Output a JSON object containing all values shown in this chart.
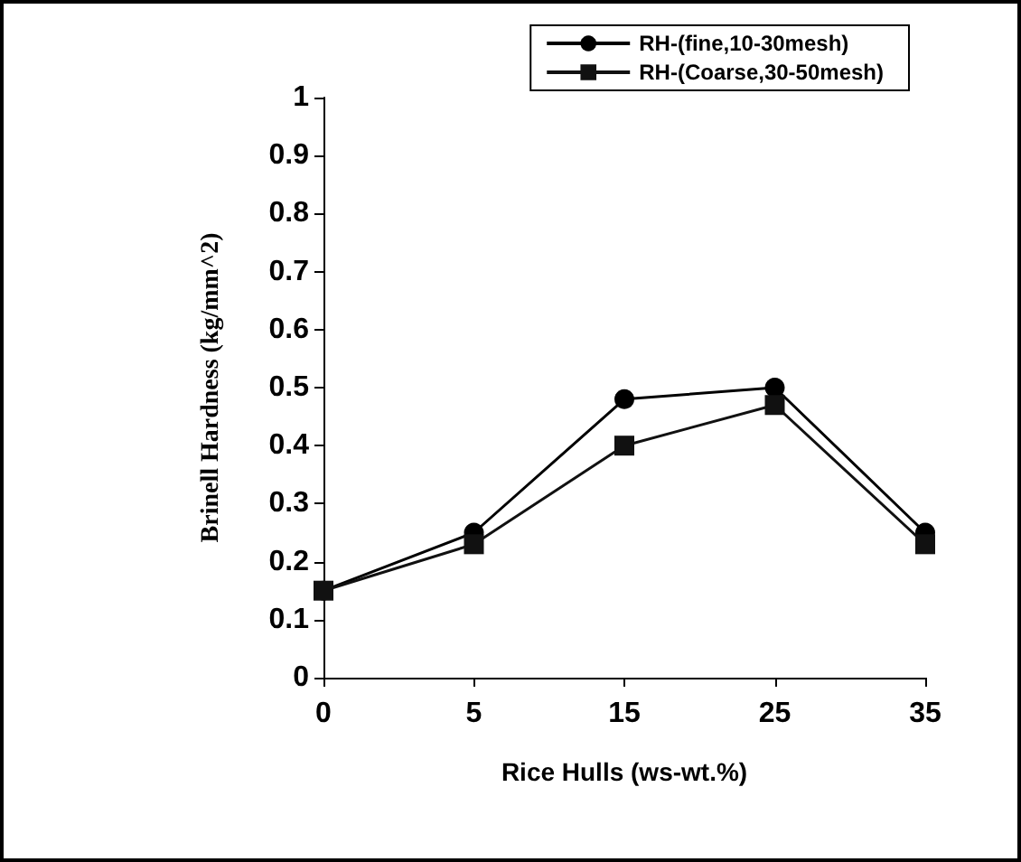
{
  "chart_data": {
    "type": "line",
    "xlabel": "Rice Hulls (ws-wt.%)",
    "ylabel": "Brinell Hardness (kg/mm^2)",
    "categories": [
      "0",
      "5",
      "15",
      "25",
      "35"
    ],
    "series": [
      {
        "name": "RH-(fine,10-30mesh)",
        "color": "#000000",
        "marker": "circle",
        "values": [
          0.15,
          0.25,
          0.48,
          0.5,
          0.25
        ]
      },
      {
        "name": "RH-(Coarse,30-50mesh)",
        "color": "#111111",
        "marker": "square",
        "values": [
          0.15,
          0.23,
          0.4,
          0.47,
          0.23
        ]
      }
    ],
    "ylim": [
      0,
      1
    ],
    "yticks": [
      0,
      0.1,
      0.2,
      0.3,
      0.4,
      0.5,
      0.6,
      0.7,
      0.8,
      0.9,
      1
    ],
    "grid": false,
    "legend": "top right",
    "line_style": "solid"
  }
}
